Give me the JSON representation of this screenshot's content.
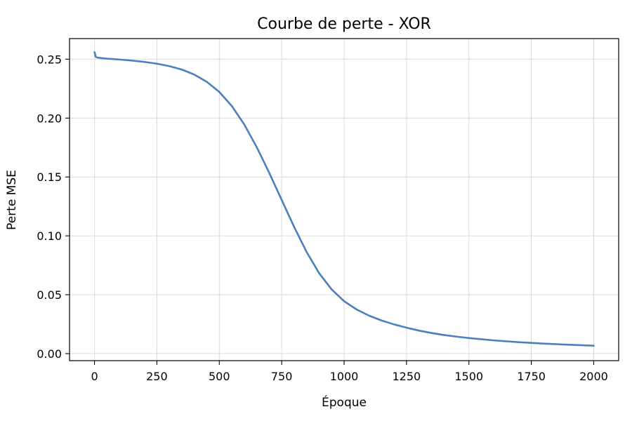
{
  "chart_data": {
    "type": "line",
    "title": "Courbe de perte - XOR",
    "xlabel": "Époque",
    "ylabel": "Perte MSE",
    "xlim": [
      -100,
      2100
    ],
    "ylim": [
      -0.006,
      0.2675
    ],
    "xticks": [
      0,
      250,
      500,
      750,
      1000,
      1250,
      1500,
      1750,
      2000
    ],
    "xtick_labels": [
      "0",
      "250",
      "500",
      "750",
      "1000",
      "1250",
      "1500",
      "1750",
      "2000"
    ],
    "yticks": [
      0.0,
      0.05,
      0.1,
      0.15,
      0.2,
      0.25
    ],
    "ytick_labels": [
      "0.00",
      "0.05",
      "0.10",
      "0.15",
      "0.20",
      "0.25"
    ],
    "grid": true,
    "series": [
      {
        "color": "#4a7fc0",
        "x": [
          0,
          5,
          10,
          25,
          50,
          100,
          150,
          200,
          250,
          300,
          350,
          400,
          450,
          500,
          550,
          600,
          650,
          700,
          750,
          800,
          850,
          900,
          950,
          1000,
          1050,
          1100,
          1150,
          1200,
          1250,
          1300,
          1350,
          1400,
          1450,
          1500,
          1600,
          1700,
          1800,
          1900,
          2000
        ],
        "y": [
          0.256,
          0.252,
          0.2515,
          0.251,
          0.2505,
          0.2497,
          0.2488,
          0.2477,
          0.2462,
          0.2441,
          0.2412,
          0.2369,
          0.2308,
          0.2222,
          0.2103,
          0.1946,
          0.1753,
          0.1535,
          0.1305,
          0.1075,
          0.0862,
          0.0683,
          0.0545,
          0.0445,
          0.0375,
          0.0322,
          0.0281,
          0.0248,
          0.022,
          0.0195,
          0.0175,
          0.0158,
          0.0144,
          0.0132,
          0.0112,
          0.0097,
          0.0085,
          0.0075,
          0.0067
        ]
      }
    ]
  }
}
